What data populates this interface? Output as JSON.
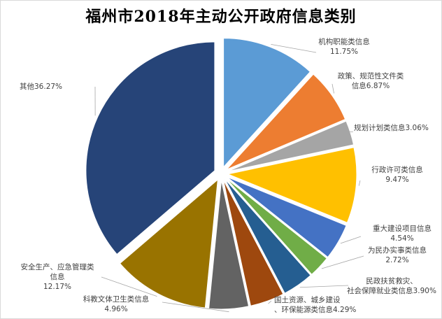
{
  "chart_data": {
    "type": "pie",
    "title": "福州市2018年主动公开政府信息类别",
    "slices": [
      {
        "label": "机构职能类信息",
        "value": 11.75,
        "value_label": "11.75%",
        "color": "#5b9bd5"
      },
      {
        "label": "政策、规范性文件类信息",
        "value": 6.87,
        "value_label": "6.87%",
        "color": "#ed7d31"
      },
      {
        "label": "规划计划类信息",
        "value": 3.06,
        "value_label": "3.06%",
        "color": "#a5a5a5"
      },
      {
        "label": "行政许可类信息",
        "value": 9.47,
        "value_label": "9.47%",
        "color": "#ffc000"
      },
      {
        "label": "重大建设项目信息",
        "value": 4.54,
        "value_label": "4.54%",
        "color": "#4472c4"
      },
      {
        "label": "为民办实事类信息",
        "value": 2.72,
        "value_label": "2.72%",
        "color": "#70ad47"
      },
      {
        "label": "民政扶贫救灾、社会保障就业类信息",
        "value": 3.9,
        "value_label": "3.90%",
        "color": "#255e91"
      },
      {
        "label": "国土资源、城乡建设、环保能源类信息",
        "value": 4.29,
        "value_label": "4.29%",
        "color": "#9e480e"
      },
      {
        "label": "科教文体卫生类信息",
        "value": 4.96,
        "value_label": "4.96%",
        "color": "#636363"
      },
      {
        "label": "安全生产、应急管理类信息",
        "value": 12.17,
        "value_label": "12.17%",
        "color": "#997300"
      },
      {
        "label": "其他",
        "value": 36.27,
        "value_label": "36.27%",
        "color": "#264478"
      }
    ]
  }
}
